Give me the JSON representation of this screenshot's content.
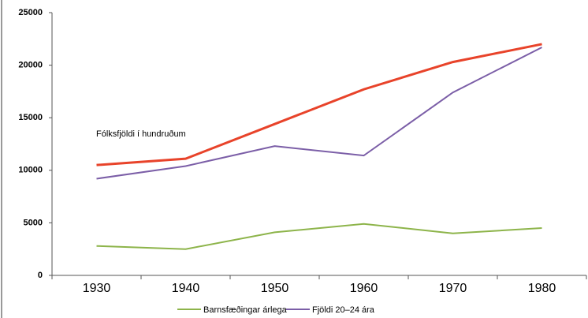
{
  "chart_data": {
    "type": "line",
    "categories": [
      "1930",
      "1940",
      "1950",
      "1960",
      "1970",
      "1980"
    ],
    "series": [
      {
        "name": "Fólksfjöldi í hundruðum",
        "color": "#e8432a",
        "values": [
          10500,
          11100,
          14400,
          17700,
          20300,
          22000
        ]
      },
      {
        "name": "Barnsfæðingar árlega",
        "color": "#8db44a",
        "values": [
          2800,
          2500,
          4100,
          4900,
          4000,
          4500
        ]
      },
      {
        "name": "Fjöldi 20–24 ára",
        "color": "#7b5ea7",
        "values": [
          9200,
          10400,
          12300,
          11400,
          17400,
          21700
        ]
      }
    ],
    "ylim": [
      0,
      25000
    ],
    "yticks": [
      0,
      5000,
      10000,
      15000,
      20000,
      25000
    ],
    "grid": false
  }
}
